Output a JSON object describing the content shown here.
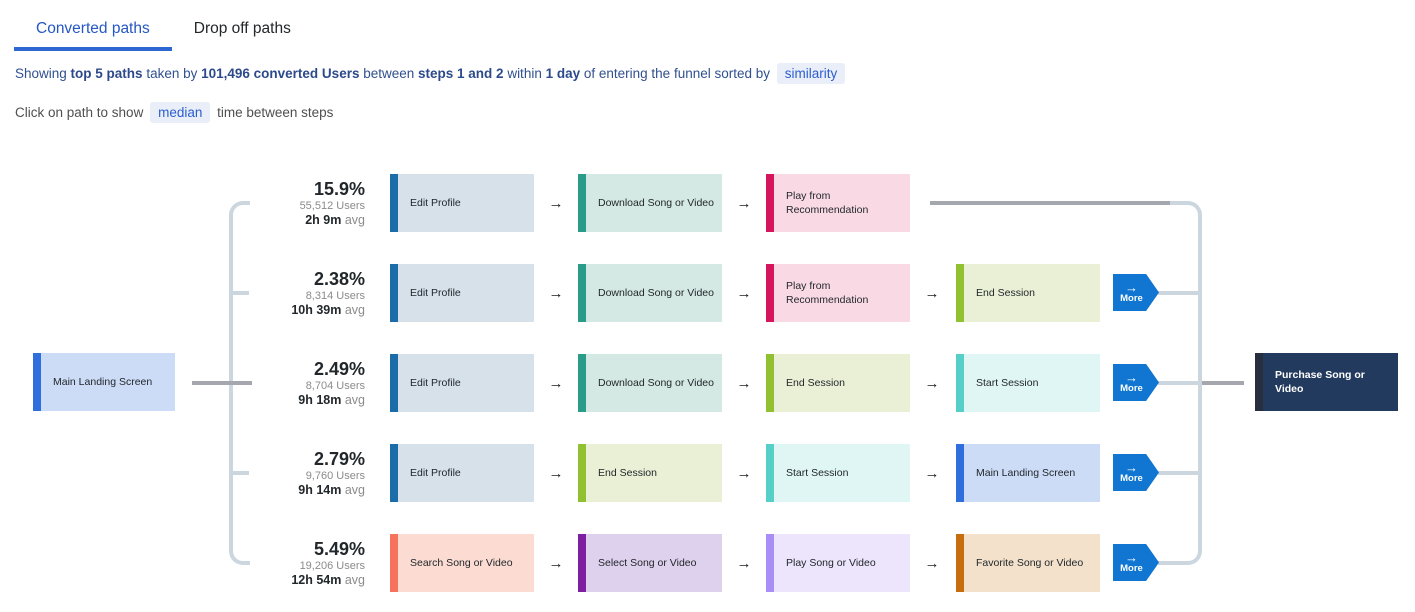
{
  "tabs": [
    {
      "label": "Converted paths",
      "active": true
    },
    {
      "label": "Drop off paths",
      "active": false
    }
  ],
  "subtitle": {
    "segments": [
      {
        "text": "Showing ",
        "style": "normal"
      },
      {
        "text": "top 5 paths",
        "style": "bold"
      },
      {
        "text": " taken by ",
        "style": "normal"
      },
      {
        "text": "101,496 converted Users",
        "style": "bold"
      },
      {
        "text": " between ",
        "style": "normal"
      },
      {
        "text": "steps 1 and 2",
        "style": "bold"
      },
      {
        "text": " within ",
        "style": "normal"
      },
      {
        "text": "1 day",
        "style": "bold"
      },
      {
        "text": " of entering the funnel sorted by ",
        "style": "normal"
      },
      {
        "text": "similarity",
        "style": "badge",
        "name": "similarity-selector"
      }
    ]
  },
  "hint": {
    "segments": [
      {
        "text": "Click on path to show ",
        "style": "normal"
      },
      {
        "text": "median",
        "style": "badge",
        "name": "median-selector"
      },
      {
        "text": " time between steps",
        "style": "normal"
      }
    ]
  },
  "source_node": {
    "label": "Main Landing Screen"
  },
  "target_node": {
    "label": "Purchase Song or Video"
  },
  "labels": {
    "avg": "avg"
  },
  "more_button": {
    "label": "More",
    "icon": "arrow-right-icon"
  },
  "paths": [
    {
      "percent": "15.9%",
      "users": "55,512 Users",
      "avg_time": "2h 9m",
      "steps": [
        "Edit Profile",
        "Download Song or Video",
        "Play from Recommendation"
      ],
      "more": false
    },
    {
      "percent": "2.38%",
      "users": "8,314 Users",
      "avg_time": "10h 39m",
      "steps": [
        "Edit Profile",
        "Download Song or Video",
        "Play from Recommendation",
        "End Session"
      ],
      "more": true
    },
    {
      "percent": "2.49%",
      "users": "8,704 Users",
      "avg_time": "9h 18m",
      "steps": [
        "Edit Profile",
        "Download Song or Video",
        "End Session",
        "Start Session"
      ],
      "more": true
    },
    {
      "percent": "2.79%",
      "users": "9,760 Users",
      "avg_time": "9h 14m",
      "steps": [
        "Edit Profile",
        "End Session",
        "Start Session",
        "Main Landing Screen"
      ],
      "more": true
    },
    {
      "percent": "5.49%",
      "users": "19,206 Users",
      "avg_time": "12h 54m",
      "steps": [
        "Search Song or Video",
        "Select Song or Video",
        "Play Song or Video",
        "Favorite Song or Video"
      ],
      "more": true
    }
  ],
  "node_colors": {
    "Main Landing Screen": {
      "border": "#2f6fdd",
      "bg": "#cddcf6"
    },
    "Edit Profile": {
      "border": "#1b6ca8",
      "bg": "#d6e1ea"
    },
    "Download Song or Video": {
      "border": "#2a9d8a",
      "bg": "#d4e9e3"
    },
    "Play from Recommendation": {
      "border": "#d6165c",
      "bg": "#f9dae4"
    },
    "End Session": {
      "border": "#91c131",
      "bg": "#e9f0d5"
    },
    "Start Session": {
      "border": "#56cfc9",
      "bg": "#e0f6f5"
    },
    "Search Song or Video": {
      "border": "#f5735c",
      "bg": "#fcdcd2"
    },
    "Select Song or Video": {
      "border": "#7d1fa0",
      "bg": "#ded1ed"
    },
    "Play Song or Video": {
      "border": "#a98ef7",
      "bg": "#ece5fb"
    },
    "Favorite Song or Video": {
      "border": "#c66d0f",
      "bg": "#f3e1cb"
    },
    "Purchase Song or Video": {
      "border": "#272f3e",
      "bg": "#233a5f",
      "text": "#ffffff"
    }
  },
  "colors": {
    "tab_active": "#2457c4",
    "tab_underline": "#2d67d2",
    "badge_bg": "#e9eef8",
    "badge_text": "#2d5ecf",
    "connector_light": "#ccd6de",
    "connector_dark": "#a5a7ae",
    "more_button_bg": "#1076d2"
  }
}
